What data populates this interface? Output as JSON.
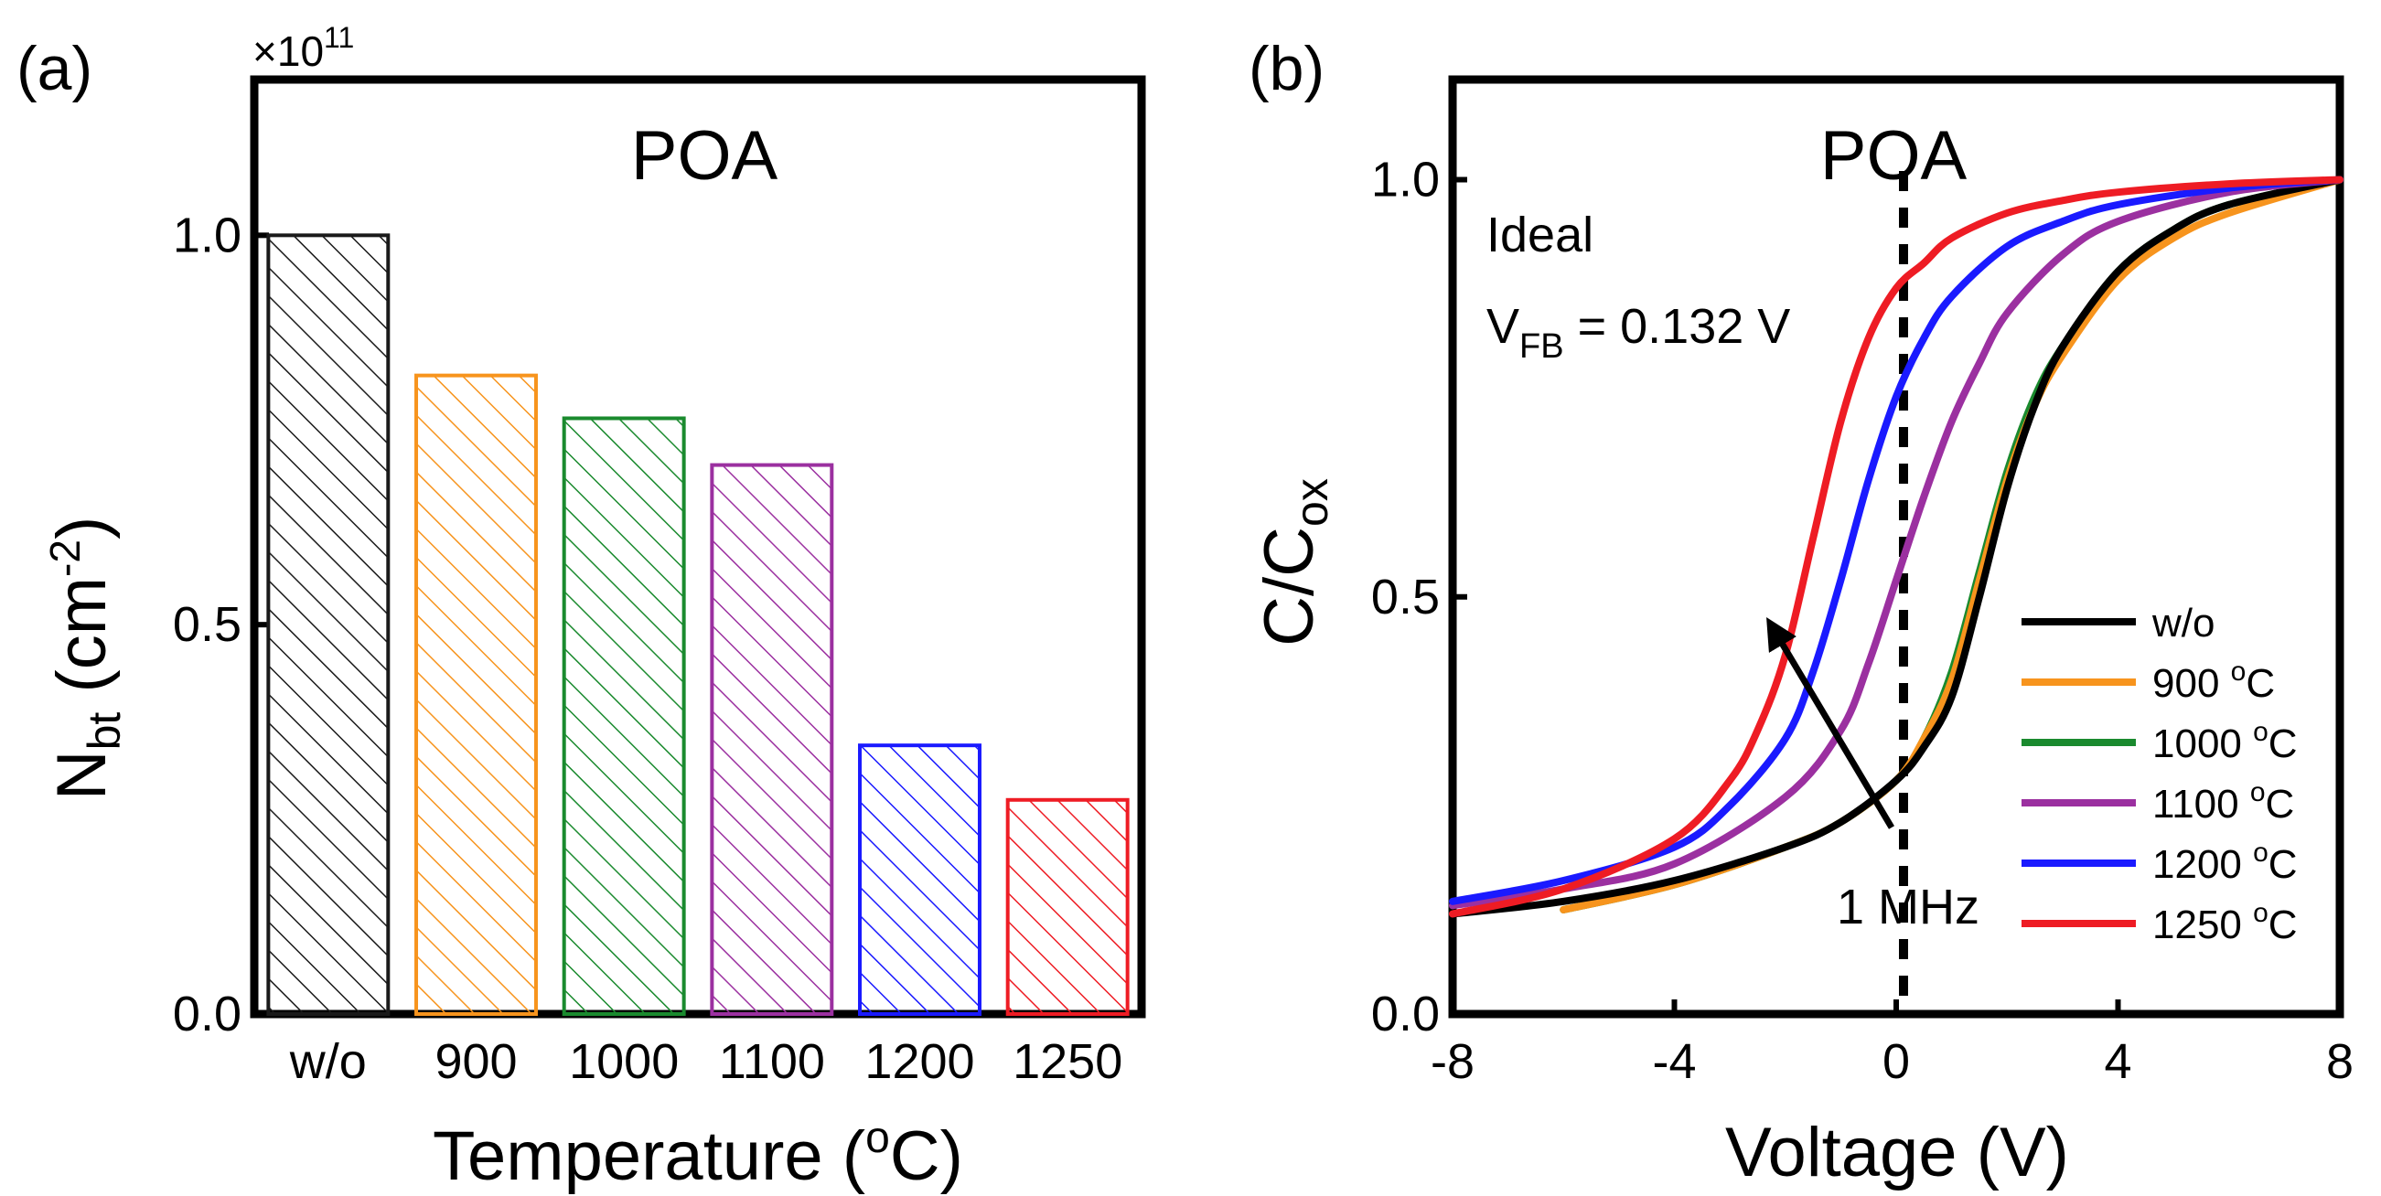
{
  "panels": {
    "a": {
      "label": "(a)",
      "title": "POA",
      "multiplier": "×10",
      "multiplier_exp": "11",
      "ylabel": {
        "main": "N",
        "sub": "bt",
        "unit_pre": "(cm",
        "unit_sup": "-2",
        "unit_post": ")"
      },
      "xlabel": {
        "main": "Temperature (",
        "sup": "o",
        "post": "C)"
      }
    },
    "b": {
      "label": "(b)",
      "title": "POA",
      "ylabel": {
        "main": "C/C",
        "sub": "ox"
      },
      "xlabel": "Voltage (V)",
      "annotation": {
        "line1": "Ideal",
        "vfb_main": "V",
        "vfb_sub": "FB",
        "vfb_value": " = 0.132 V"
      },
      "arrow_label": "1 MHz"
    }
  },
  "chart_data": [
    {
      "type": "bar",
      "title": "POA",
      "categories": [
        "w/o",
        "900",
        "1000",
        "1100",
        "1200",
        "1250"
      ],
      "values": [
        1.0,
        0.82,
        0.765,
        0.705,
        0.345,
        0.275
      ],
      "colors": [
        "#1a1a1a",
        "#f7941d",
        "#1a8a2e",
        "#9b30a0",
        "#1a1aff",
        "#ee1c24"
      ],
      "fill": "hatched",
      "ylim": [
        0,
        1.2
      ],
      "yticks": [
        "0.0",
        "0.5",
        "1.0"
      ],
      "ytick_values": [
        0,
        0.5,
        1.0
      ],
      "ylabel": "N_bt (cm^-2)",
      "y_scale": "x10^11",
      "xlabel": "Temperature (oC)"
    },
    {
      "type": "line",
      "title": "POA",
      "xlabel": "Voltage (V)",
      "ylabel": "C/C_ox",
      "xlim": [
        -8,
        8
      ],
      "ylim": [
        0,
        1.12
      ],
      "xticks": [
        "-8",
        "-4",
        "0",
        "4",
        "8"
      ],
      "xtick_values": [
        -8,
        -4,
        0,
        4,
        8
      ],
      "yticks": [
        "0.0",
        "0.5",
        "1.0"
      ],
      "ytick_values": [
        0,
        0.5,
        1.0
      ],
      "ideal_vfb": 0.132,
      "series": [
        {
          "name": "w/o",
          "legend": "w/o",
          "color": "#000000",
          "x_start": -8,
          "x": [
            -8,
            -6,
            -4,
            -2,
            -1,
            0,
            0.5,
            1,
            1.5,
            2,
            2.5,
            3,
            4,
            5,
            6,
            8
          ],
          "y": [
            0.12,
            0.135,
            0.16,
            0.2,
            0.23,
            0.28,
            0.32,
            0.38,
            0.5,
            0.63,
            0.73,
            0.8,
            0.89,
            0.94,
            0.97,
            1.0
          ]
        },
        {
          "name": "900",
          "legend": "900 °C",
          "legend_main": "900 ",
          "color": "#f7941d",
          "x": [
            -6,
            -4,
            -2,
            -1,
            0,
            0.5,
            1,
            1.5,
            2,
            2.5,
            3,
            4,
            5,
            6,
            8
          ],
          "y": [
            0.125,
            0.155,
            0.2,
            0.23,
            0.28,
            0.33,
            0.4,
            0.52,
            0.64,
            0.73,
            0.79,
            0.88,
            0.93,
            0.96,
            1.0
          ]
        },
        {
          "name": "1000",
          "legend": "1000 °C",
          "legend_main": "1000 ",
          "color": "#1a8a2e",
          "x": [
            -6,
            -4,
            -2,
            -1,
            0,
            0.5,
            1,
            1.5,
            2,
            2.5,
            3,
            4,
            5,
            6,
            8
          ],
          "y": [
            0.125,
            0.155,
            0.2,
            0.23,
            0.28,
            0.33,
            0.41,
            0.53,
            0.65,
            0.74,
            0.8,
            0.89,
            0.94,
            0.97,
            1.0
          ]
        },
        {
          "name": "1100",
          "legend": "1100 °C",
          "legend_main": "1100 ",
          "color": "#9b30a0",
          "x": [
            -8,
            -6,
            -4,
            -2,
            -1,
            -0.5,
            0,
            0.5,
            1,
            1.5,
            2,
            3,
            4,
            6,
            8
          ],
          "y": [
            0.13,
            0.15,
            0.18,
            0.26,
            0.34,
            0.42,
            0.52,
            0.62,
            0.71,
            0.78,
            0.84,
            0.91,
            0.95,
            0.985,
            1.0
          ]
        },
        {
          "name": "1200",
          "legend": "1200 °C",
          "legend_main": "1200 ",
          "color": "#1a1aff",
          "x": [
            -8,
            -6,
            -4,
            -3,
            -2,
            -1.5,
            -1,
            -0.5,
            0,
            0.5,
            1,
            2,
            3,
            4,
            6,
            8
          ],
          "y": [
            0.135,
            0.16,
            0.2,
            0.25,
            0.33,
            0.41,
            0.52,
            0.64,
            0.74,
            0.81,
            0.86,
            0.92,
            0.95,
            0.97,
            0.99,
            1.0
          ]
        },
        {
          "name": "1250",
          "legend": "1250 °C",
          "legend_main": "1250 ",
          "color": "#ee1c24",
          "x": [
            -8,
            -6,
            -4,
            -3,
            -2.5,
            -2,
            -1.5,
            -1,
            -0.5,
            0,
            0.5,
            1,
            2,
            3,
            4,
            6,
            8
          ],
          "y": [
            0.12,
            0.15,
            0.21,
            0.28,
            0.34,
            0.43,
            0.57,
            0.71,
            0.81,
            0.87,
            0.9,
            0.93,
            0.96,
            0.975,
            0.985,
            0.995,
            1.0
          ]
        }
      ],
      "legend_sup": "o",
      "legend_unit": "C"
    }
  ]
}
